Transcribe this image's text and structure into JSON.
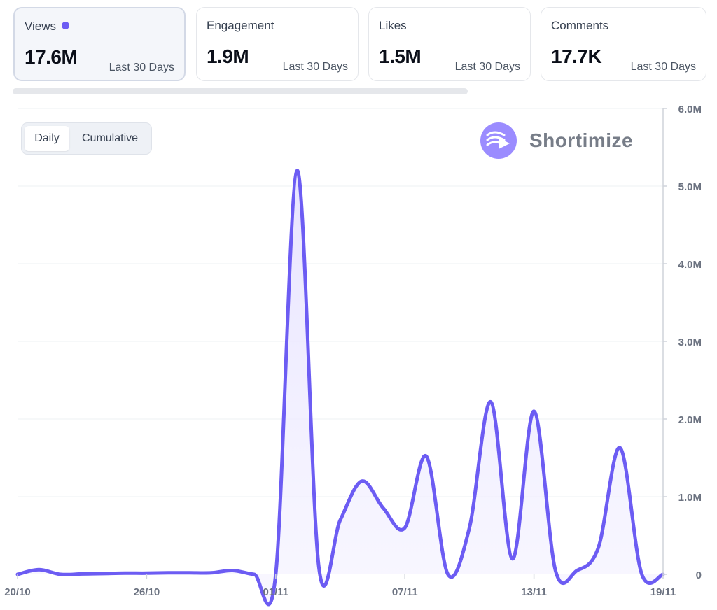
{
  "cards": [
    {
      "label": "Views",
      "value": "17.6M",
      "period": "Last 30 Days"
    },
    {
      "label": "Engagement",
      "value": "1.9M",
      "period": "Last 30 Days"
    },
    {
      "label": "Likes",
      "value": "1.5M",
      "period": "Last 30 Days"
    },
    {
      "label": "Comments",
      "value": "17.7K",
      "period": "Last 30 Days"
    }
  ],
  "toggle": {
    "daily": "Daily",
    "cumulative": "Cumulative",
    "selected": "Daily"
  },
  "brand": {
    "name": "Shortimize",
    "icon": "play-wave-logo-icon"
  },
  "colors": {
    "line": "#6c5cf3",
    "fill": "#ece9ff",
    "axis": "#6b7280",
    "grid": "#eef0f3"
  },
  "chart_data": {
    "type": "area",
    "title": "",
    "xlabel": "",
    "ylabel": "",
    "x": [
      "20/10",
      "21/10",
      "22/10",
      "23/10",
      "24/10",
      "25/10",
      "26/10",
      "27/10",
      "28/10",
      "29/10",
      "30/10",
      "31/10",
      "01/11",
      "02/11",
      "03/11",
      "04/11",
      "05/11",
      "06/11",
      "07/11",
      "08/11",
      "09/11",
      "10/11",
      "11/11",
      "12/11",
      "13/11",
      "14/11",
      "15/11",
      "16/11",
      "17/11",
      "18/11",
      "19/11"
    ],
    "values": [
      0,
      60000,
      0,
      5000,
      10000,
      15000,
      15000,
      20000,
      20000,
      20000,
      50000,
      0,
      0,
      5200000,
      100000,
      700000,
      1200000,
      850000,
      600000,
      1520000,
      0,
      600000,
      2220000,
      200000,
      2100000,
      50000,
      50000,
      350000,
      1630000,
      10000,
      0
    ],
    "ylim": [
      0,
      6000000
    ],
    "y_ticks": [
      "0",
      "1.0M",
      "2.0M",
      "3.0M",
      "4.0M",
      "5.0M",
      "6.0M"
    ],
    "x_ticks": [
      "20/10",
      "26/10",
      "01/11",
      "07/11",
      "13/11",
      "19/11"
    ],
    "grid": true,
    "y_axis_position": "right"
  }
}
